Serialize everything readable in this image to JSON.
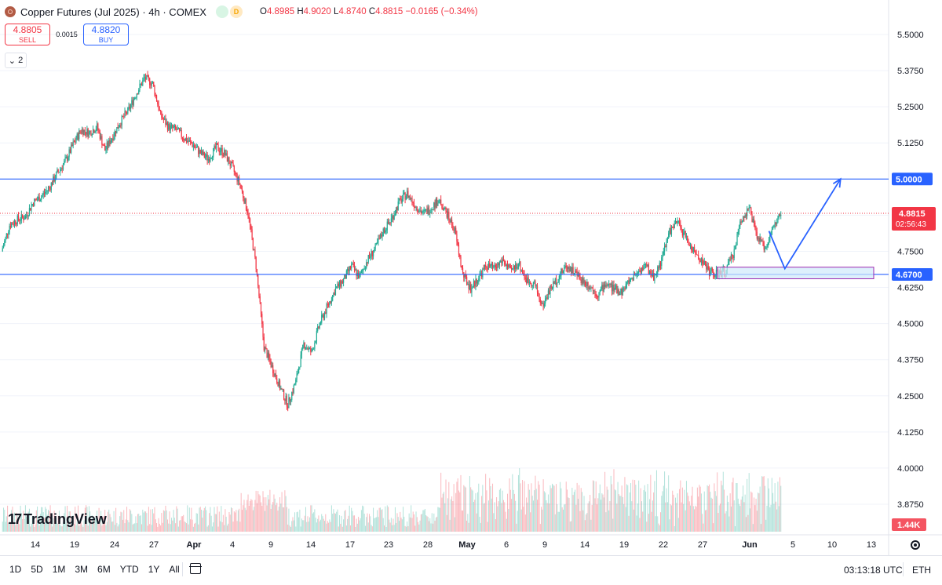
{
  "header": {
    "title": "Copper Futures (Jul 2025) · 4h · COMEX",
    "badges": [
      "",
      "D"
    ],
    "ohlc": {
      "o_label": "O",
      "o": "4.8985",
      "h_label": "H",
      "h": "4.9020",
      "l_label": "L",
      "l": "4.8740",
      "c_label": "C",
      "c": "4.8815",
      "change": "−0.0165 (−0.34%)"
    }
  },
  "trade": {
    "sell_price": "4.8805",
    "sell_label": "SELL",
    "spread": "0.0015",
    "buy_price": "4.8820",
    "buy_label": "BUY"
  },
  "indicators_collapsed": "2",
  "logo_text": "TradingView",
  "time_ranges": [
    "1D",
    "5D",
    "1M",
    "3M",
    "6M",
    "YTD",
    "1Y",
    "All"
  ],
  "clock": "03:13:18 UTC",
  "session": "ETH",
  "colors": {
    "up": "#22ab94",
    "down": "#f23645",
    "line": "#2962ff",
    "zone": "#cfeafb",
    "zone_border": "#9c27b0"
  },
  "chart_data": {
    "type": "candlestick",
    "symbol": "Copper Futures (Jul 2025)",
    "interval": "4h",
    "price_axis": {
      "ticks": [
        5.5,
        5.375,
        5.25,
        5.125,
        5.0,
        4.875,
        4.75,
        4.625,
        4.5,
        4.375,
        4.25,
        4.125,
        4.0,
        3.875
      ],
      "ylim": [
        3.82,
        5.56
      ]
    },
    "x_ticks": [
      "14",
      "19",
      "24",
      "27",
      "Apr",
      "4",
      "9",
      "14",
      "17",
      "23",
      "28",
      "May",
      "6",
      "9",
      "14",
      "19",
      "22",
      "27",
      "Jun",
      "5",
      "10",
      "13"
    ],
    "close_path": [
      [
        0,
        4.75
      ],
      [
        1,
        4.84
      ],
      [
        2,
        4.86
      ],
      [
        3,
        4.87
      ],
      [
        4,
        4.92
      ],
      [
        5,
        4.94
      ],
      [
        6,
        4.97
      ],
      [
        7,
        5.02
      ],
      [
        8,
        5.06
      ],
      [
        9,
        5.12
      ],
      [
        10,
        5.17
      ],
      [
        11,
        5.16
      ],
      [
        12,
        5.18
      ],
      [
        13,
        5.1
      ],
      [
        14,
        5.15
      ],
      [
        15,
        5.2
      ],
      [
        16,
        5.24
      ],
      [
        17,
        5.3
      ],
      [
        18,
        5.35
      ],
      [
        19,
        5.33
      ],
      [
        20,
        5.22
      ],
      [
        21,
        5.18
      ],
      [
        22,
        5.17
      ],
      [
        23,
        5.14
      ],
      [
        24,
        5.12
      ],
      [
        25,
        5.09
      ],
      [
        26,
        5.07
      ],
      [
        27,
        5.11
      ],
      [
        28,
        5.09
      ],
      [
        29,
        5.04
      ],
      [
        30,
        4.98
      ],
      [
        31,
        4.88
      ],
      [
        32,
        4.7
      ],
      [
        33,
        4.42
      ],
      [
        34,
        4.35
      ],
      [
        35,
        4.28
      ],
      [
        36,
        4.22
      ],
      [
        37,
        4.3
      ],
      [
        38,
        4.43
      ],
      [
        39,
        4.4
      ],
      [
        40,
        4.5
      ],
      [
        41,
        4.56
      ],
      [
        42,
        4.62
      ],
      [
        43,
        4.65
      ],
      [
        44,
        4.7
      ],
      [
        45,
        4.66
      ],
      [
        46,
        4.72
      ],
      [
        47,
        4.76
      ],
      [
        48,
        4.82
      ],
      [
        49,
        4.86
      ],
      [
        50,
        4.92
      ],
      [
        51,
        4.95
      ],
      [
        52,
        4.91
      ],
      [
        53,
        4.88
      ],
      [
        54,
        4.9
      ],
      [
        55,
        4.93
      ],
      [
        56,
        4.88
      ],
      [
        57,
        4.82
      ],
      [
        58,
        4.67
      ],
      [
        59,
        4.62
      ],
      [
        60,
        4.66
      ],
      [
        61,
        4.7
      ],
      [
        62,
        4.69
      ],
      [
        63,
        4.72
      ],
      [
        64,
        4.68
      ],
      [
        65,
        4.71
      ],
      [
        66,
        4.65
      ],
      [
        67,
        4.64
      ],
      [
        68,
        4.56
      ],
      [
        69,
        4.62
      ],
      [
        70,
        4.66
      ],
      [
        71,
        4.7
      ],
      [
        72,
        4.68
      ],
      [
        73,
        4.65
      ],
      [
        74,
        4.63
      ],
      [
        75,
        4.6
      ],
      [
        76,
        4.64
      ],
      [
        77,
        4.62
      ],
      [
        78,
        4.61
      ],
      [
        79,
        4.65
      ],
      [
        80,
        4.68
      ],
      [
        81,
        4.7
      ],
      [
        82,
        4.66
      ],
      [
        83,
        4.72
      ],
      [
        84,
        4.82
      ],
      [
        85,
        4.85
      ],
      [
        86,
        4.8
      ],
      [
        87,
        4.75
      ],
      [
        88,
        4.72
      ],
      [
        89,
        4.68
      ],
      [
        90,
        4.67
      ],
      [
        91,
        4.68
      ],
      [
        92,
        4.74
      ],
      [
        93,
        4.86
      ],
      [
        94,
        4.9
      ],
      [
        95,
        4.8
      ],
      [
        96,
        4.76
      ],
      [
        97,
        4.83
      ],
      [
        98,
        4.88
      ]
    ],
    "current_price": "4.8815",
    "countdown": "02:56:43",
    "horizontal_levels": [
      {
        "price": 5.0,
        "label": "5.0000"
      },
      {
        "price": 4.67,
        "label": "4.6700"
      }
    ],
    "volume_label": "1.44K",
    "support_zone": {
      "from": 4.655,
      "to": 4.695
    },
    "projection_arrow": [
      [
        96.5,
        4.82
      ],
      [
        98.5,
        4.69
      ],
      [
        105.5,
        5.0
      ]
    ]
  }
}
